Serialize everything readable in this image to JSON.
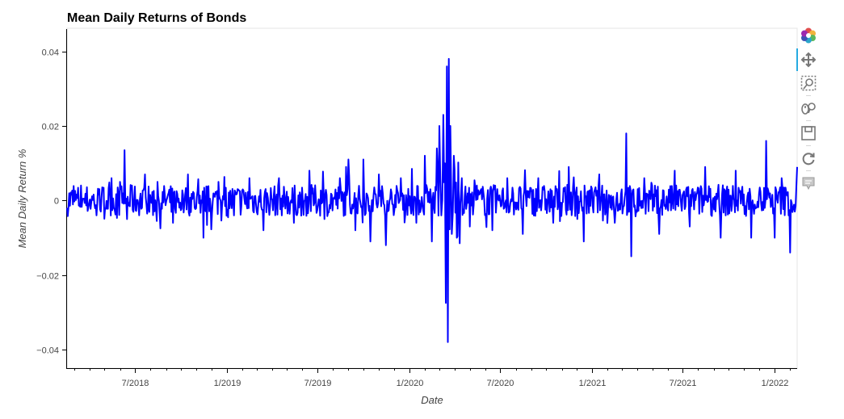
{
  "chart_data": {
    "type": "line",
    "title": "Mean Daily Returns of Bonds",
    "xlabel": "Date",
    "ylabel": "Mean Daily Return %",
    "x_range": [
      "2018-02-15",
      "2022-02-15"
    ],
    "xlim": [
      "2018-02-15",
      "2022-02-15"
    ],
    "ylim": [
      -0.045,
      0.046
    ],
    "x_ticks": [
      "7/2018",
      "1/2019",
      "7/2019",
      "1/2020",
      "7/2020",
      "1/2021",
      "7/2021",
      "1/2022"
    ],
    "y_ticks": [
      0.04,
      0.02,
      0,
      -0.02,
      -0.04
    ],
    "y_tick_labels": [
      "0.04",
      "0.02",
      "0",
      "−0.02",
      "−0.04"
    ],
    "grid": false,
    "color": "#0000ff",
    "series": [
      {
        "x": [
          "2018-02-15",
          "2018-03-15",
          "2018-04-15",
          "2018-05-15",
          "2018-06-01",
          "2018-06-10",
          "2018-06-15",
          "2018-06-25",
          "2018-07-15",
          "2018-08-15",
          "2018-09-15",
          "2018-10-15",
          "2018-11-15",
          "2018-12-15",
          "2019-01-15",
          "2019-02-15",
          "2019-03-15",
          "2019-04-15",
          "2019-05-15",
          "2019-06-15",
          "2019-07-15",
          "2019-08-15",
          "2019-09-01",
          "2019-09-15",
          "2019-10-01",
          "2019-10-15",
          "2019-11-01",
          "2019-11-15",
          "2019-12-15",
          "2020-01-15",
          "2020-02-01",
          "2020-02-15",
          "2020-02-25",
          "2020-03-01",
          "2020-03-05",
          "2020-03-09",
          "2020-03-12",
          "2020-03-14",
          "2020-03-16",
          "2020-03-18",
          "2020-03-20",
          "2020-03-23",
          "2020-03-26",
          "2020-03-30",
          "2020-04-05",
          "2020-04-15",
          "2020-05-01",
          "2020-05-15",
          "2020-06-15",
          "2020-07-15",
          "2020-08-15",
          "2020-09-15",
          "2020-10-15",
          "2020-11-15",
          "2020-12-15",
          "2021-01-15",
          "2021-02-15",
          "2021-03-01",
          "2021-03-10",
          "2021-03-20",
          "2021-04-15",
          "2021-05-15",
          "2021-06-15",
          "2021-07-15",
          "2021-08-15",
          "2021-09-15",
          "2021-10-15",
          "2021-11-15",
          "2021-12-15",
          "2022-01-01",
          "2022-01-15",
          "2022-02-01",
          "2022-02-15"
        ],
        "y": [
          -0.002,
          0.004,
          -0.004,
          0.006,
          0.005,
          0.0135,
          -0.005,
          0.004,
          -0.002,
          0.005,
          -0.006,
          0.007,
          -0.01,
          0.005,
          -0.004,
          0.006,
          -0.008,
          0.006,
          -0.006,
          0.008,
          -0.005,
          0.006,
          0.011,
          -0.008,
          0.011,
          -0.011,
          0.007,
          -0.012,
          0.006,
          -0.006,
          0.012,
          -0.011,
          0.014,
          0.02,
          -0.004,
          0.023,
          0.01,
          -0.0275,
          0.036,
          -0.038,
          0.038,
          0.02,
          -0.009,
          0.012,
          -0.01,
          0.006,
          -0.007,
          0.004,
          -0.008,
          0.006,
          -0.009,
          0.006,
          -0.006,
          0.009,
          -0.011,
          0.007,
          -0.006,
          0.003,
          0.018,
          -0.015,
          0.006,
          -0.009,
          0.008,
          -0.007,
          0.009,
          -0.01,
          0.008,
          -0.01,
          0.016,
          -0.01,
          0.006,
          -0.014,
          0.009
        ]
      }
    ]
  },
  "toolbar": {
    "tools": [
      "bokeh-logo-icon",
      "pan-icon",
      "box-zoom-icon",
      "wheel-zoom-icon",
      "save-icon",
      "reset-icon",
      "hover-icon"
    ]
  }
}
